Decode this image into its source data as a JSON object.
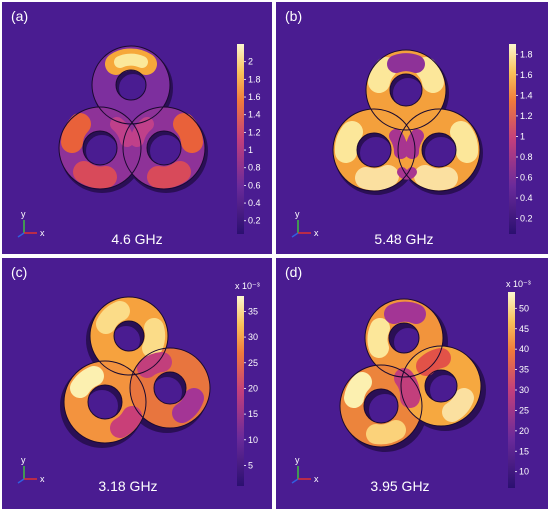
{
  "figure": {
    "panels": [
      {
        "label": "(a)",
        "frequency": "4.6 GHz",
        "colorbar": {
          "exponent_label": "",
          "ticks": [
            "0.2",
            "0.4",
            "0.6",
            "0.8",
            "1",
            "1.2",
            "1.4",
            "1.6",
            "1.8",
            "2"
          ],
          "range": [
            0.05,
            2.2
          ]
        },
        "axes_triad": {
          "y": "y",
          "x": "x"
        }
      },
      {
        "label": "(b)",
        "frequency": "5.48 GHz",
        "colorbar": {
          "exponent_label": "",
          "ticks": [
            "0.2",
            "0.4",
            "0.6",
            "0.8",
            "1",
            "1.2",
            "1.4",
            "1.6",
            "1.8"
          ],
          "range": [
            0.05,
            1.9
          ]
        },
        "axes_triad": {
          "y": "y",
          "x": "x"
        }
      },
      {
        "label": "(c)",
        "frequency": "3.18 GHz",
        "colorbar": {
          "exponent_label": "x 10⁻³",
          "ticks": [
            "5",
            "10",
            "15",
            "20",
            "25",
            "30",
            "35"
          ],
          "range": [
            1,
            38
          ]
        },
        "axes_triad": {
          "y": "y",
          "x": "x"
        }
      },
      {
        "label": "(d)",
        "frequency": "3.95 GHz",
        "colorbar": {
          "exponent_label": "x 10⁻³",
          "ticks": [
            "10",
            "15",
            "20",
            "25",
            "30",
            "35",
            "40",
            "45",
            "50"
          ],
          "range": [
            6,
            54
          ]
        },
        "axes_triad": {
          "y": "y",
          "x": "x"
        }
      }
    ],
    "colors": {
      "background": "#4a1c91",
      "colormap": [
        "#2b1070",
        "#5a2796",
        "#a0349a",
        "#e0525a",
        "#f7a33a",
        "#fcf7bf"
      ]
    }
  }
}
